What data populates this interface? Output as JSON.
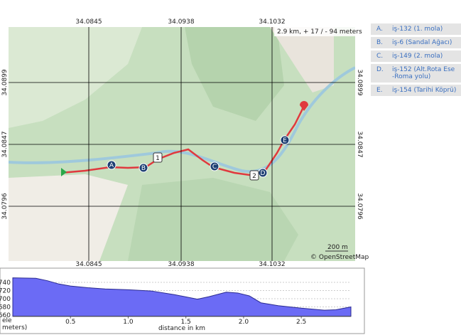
{
  "map": {
    "stats": "2.9 km, + 17 / - 94 meters",
    "x_labels_top": [
      "34.0845",
      "34.0938",
      "34.1032"
    ],
    "x_labels_bottom": [
      "34.0845",
      "34.0938",
      "34.1032"
    ],
    "y_labels_left": [
      "34.0899",
      "34.0847",
      "34.0796"
    ],
    "y_labels_right": [
      "34.0899",
      "34.0847",
      "34.0796"
    ],
    "markers": [
      "A",
      "B",
      "C",
      "D",
      "E"
    ],
    "route_numbers": [
      "1",
      "2"
    ],
    "scale": "200 m",
    "attribution": "© OpenStreetMap"
  },
  "waypoints": [
    {
      "letter": "A.",
      "lines": [
        "iş-132 (1. mola)"
      ]
    },
    {
      "letter": "B.",
      "lines": [
        "iş-6 (Sandal Ağacı)"
      ]
    },
    {
      "letter": "C.",
      "lines": [
        "iş-149 (2. mola)"
      ]
    },
    {
      "letter": "D.",
      "lines": [
        "iş-152 (Alt.Rota Ese",
        "-Roma yolu)"
      ]
    },
    {
      "letter": "E.",
      "lines": [
        "iş-154 (Tarihi Köprü)"
      ]
    }
  ],
  "chart_data": {
    "type": "area",
    "ylabel_lines": [
      "ele",
      "meters)"
    ],
    "xlabel": "distance in km",
    "color": "#6b6bf5",
    "x": [
      0,
      0.2,
      0.3,
      0.4,
      0.5,
      0.65,
      0.8,
      1.0,
      1.2,
      1.4,
      1.6,
      1.7,
      1.85,
      1.95,
      2.05,
      2.15,
      2.3,
      2.5,
      2.7,
      2.8,
      2.93
    ],
    "values": [
      751,
      750,
      744,
      736,
      731,
      727,
      724,
      722,
      719,
      710,
      699,
      705,
      716,
      714,
      707,
      690,
      683,
      677,
      672,
      673,
      680
    ],
    "xlim": [
      0,
      2.93
    ],
    "ylim": [
      657,
      760
    ],
    "xticks": [
      0.5,
      {
        "value": 1,
        "label": "1.0"
      },
      1.5,
      {
        "value": 2,
        "label": "2.0"
      },
      2.5
    ],
    "yticks": [
      660,
      680,
      700,
      720,
      740
    ],
    "grid": true
  }
}
